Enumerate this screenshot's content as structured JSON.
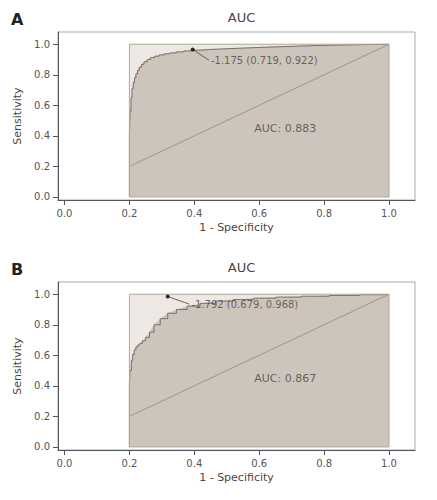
{
  "chart_data": [
    {
      "type": "line",
      "title": "AUC",
      "xlabel": "1 - Specificity",
      "ylabel": "Sensitivity",
      "xlim": [
        -0.02,
        1.08
      ],
      "ylim": [
        -0.02,
        1.08
      ],
      "xticks": [
        {
          "value": 0.0,
          "label": "0.0"
        },
        0.2,
        0.4,
        0.6,
        0.8,
        {
          "value": 1.0,
          "label": "1.0"
        }
      ],
      "yticks": [
        {
          "value": 0.0,
          "label": "0.0"
        },
        0.2,
        0.4,
        0.6,
        0.8,
        {
          "value": 1.0,
          "label": "1.0"
        }
      ],
      "grid": false,
      "series": [
        {
          "type": "area",
          "color": "#ede8e3",
          "x": [
            0.2,
            1.0
          ],
          "values": [
            1.0,
            1.0
          ]
        },
        {
          "type": "area",
          "color": "#cdc5bc",
          "x": [
            0.2,
            0.2,
            0.202,
            0.205,
            0.208,
            0.212,
            0.216,
            0.22,
            0.225,
            0.23,
            0.237,
            0.245,
            0.255,
            0.265,
            0.278,
            0.292,
            0.308,
            0.325,
            0.345,
            0.368,
            0.392,
            0.418,
            0.446,
            0.476,
            0.508,
            0.542,
            0.578,
            0.616,
            0.656,
            0.698,
            0.742,
            0.788,
            0.836,
            0.886,
            0.938,
            0.992,
            1.0
          ],
          "values": [
            0.0,
            0.4,
            0.56,
            0.65,
            0.71,
            0.75,
            0.78,
            0.805,
            0.828,
            0.848,
            0.868,
            0.885,
            0.9,
            0.912,
            0.922,
            0.93,
            0.937,
            0.943,
            0.95,
            0.956,
            0.961,
            0.965,
            0.968,
            0.971,
            0.974,
            0.977,
            0.98,
            0.983,
            0.986,
            0.989,
            0.992,
            0.994,
            0.996,
            0.998,
            0.999,
            1.0,
            1.0
          ]
        },
        {
          "type": "step",
          "color": "#7a7068",
          "x": [
            0.2,
            0.2,
            0.202,
            0.205,
            0.208,
            0.212,
            0.216,
            0.22,
            0.225,
            0.23,
            0.237,
            0.245,
            0.255,
            0.265,
            0.278,
            0.292,
            0.308,
            0.325,
            0.345,
            0.368,
            0.392,
            0.418,
            0.446,
            0.476,
            0.508,
            0.542,
            0.578,
            0.616,
            0.656,
            0.698,
            0.742,
            0.788,
            0.836,
            0.886,
            0.938,
            0.992,
            1.0
          ],
          "values": [
            0.0,
            0.4,
            0.56,
            0.65,
            0.71,
            0.75,
            0.78,
            0.805,
            0.828,
            0.848,
            0.868,
            0.885,
            0.9,
            0.912,
            0.922,
            0.93,
            0.937,
            0.943,
            0.95,
            0.956,
            0.961,
            0.965,
            0.968,
            0.971,
            0.974,
            0.977,
            0.98,
            0.983,
            0.986,
            0.989,
            0.992,
            0.994,
            0.996,
            0.998,
            0.999,
            1.0,
            1.0
          ]
        },
        {
          "type": "line",
          "color": "#a09585",
          "x": [
            0.2,
            1.0
          ],
          "values": [
            0.2,
            1.0
          ]
        },
        {
          "type": "line",
          "color": "#b0a898",
          "x": [
            0.2,
            0.2,
            1.0,
            1.0,
            0.2
          ],
          "values": [
            0.0,
            1.0,
            1.0,
            0.0,
            0.0
          ]
        }
      ],
      "annotations": [
        {
          "text": "A"
        },
        {
          "text": "AUC: 0.883",
          "x": 0.68,
          "y": 0.45
        },
        {
          "text": "-1.175 (0.719, 0.922)",
          "x": 0.445,
          "y": 0.895,
          "point_x": 0.395,
          "point_y": 0.966,
          "color": "#000000"
        }
      ]
    },
    {
      "type": "line",
      "title": "AUC",
      "xlabel": "1 - Specificity",
      "ylabel": "Sensitivity",
      "xlim": [
        -0.02,
        1.08
      ],
      "ylim": [
        -0.02,
        1.08
      ],
      "xticks": [
        {
          "value": 0.0,
          "label": "0.0"
        },
        0.2,
        0.4,
        0.6,
        0.8,
        {
          "value": 1.0,
          "label": "1.0"
        }
      ],
      "yticks": [
        {
          "value": 0.0,
          "label": "0.0"
        },
        0.2,
        0.4,
        0.6,
        0.8,
        {
          "value": 1.0,
          "label": "1.0"
        }
      ],
      "grid": false,
      "series": [
        {
          "type": "area",
          "color": "#ede8e3",
          "x": [
            0.2,
            1.0
          ],
          "values": [
            1.0,
            1.0
          ]
        },
        {
          "type": "area",
          "color": "#cdc5bc",
          "x": [
            0.2,
            0.2,
            0.202,
            0.206,
            0.21,
            0.215,
            0.22,
            0.226,
            0.232,
            0.24,
            0.25,
            0.262,
            0.276,
            0.295,
            0.318,
            0.345,
            0.378,
            0.418,
            0.465,
            0.52,
            0.582,
            0.652,
            0.73,
            0.816,
            0.91,
            1.0
          ],
          "values": [
            0.0,
            0.41,
            0.5,
            0.565,
            0.605,
            0.635,
            0.655,
            0.668,
            0.678,
            0.695,
            0.718,
            0.752,
            0.8,
            0.84,
            0.875,
            0.9,
            0.922,
            0.94,
            0.955,
            0.965,
            0.974,
            0.981,
            0.987,
            0.992,
            0.997,
            1.0
          ]
        },
        {
          "type": "step",
          "color": "#7a7068",
          "x": [
            0.2,
            0.2,
            0.202,
            0.206,
            0.21,
            0.215,
            0.22,
            0.226,
            0.232,
            0.24,
            0.25,
            0.262,
            0.276,
            0.295,
            0.318,
            0.345,
            0.378,
            0.418,
            0.465,
            0.52,
            0.582,
            0.652,
            0.73,
            0.816,
            0.91,
            1.0
          ],
          "values": [
            0.0,
            0.41,
            0.5,
            0.565,
            0.605,
            0.635,
            0.655,
            0.668,
            0.678,
            0.695,
            0.718,
            0.752,
            0.8,
            0.84,
            0.875,
            0.9,
            0.922,
            0.94,
            0.955,
            0.965,
            0.974,
            0.981,
            0.987,
            0.992,
            0.997,
            1.0
          ]
        },
        {
          "type": "line",
          "color": "#a09585",
          "x": [
            0.2,
            1.0
          ],
          "values": [
            0.2,
            1.0
          ]
        },
        {
          "type": "line",
          "color": "#b0a898",
          "x": [
            0.2,
            0.2,
            1.0,
            1.0,
            0.2
          ],
          "values": [
            0.0,
            1.0,
            1.0,
            0.0,
            0.0
          ]
        }
      ],
      "annotations": [
        {
          "text": "B"
        },
        {
          "text": "AUC: 0.867",
          "x": 0.68,
          "y": 0.45
        },
        {
          "text": "-1.792 (0.679, 0.968)",
          "x": 0.385,
          "y": 0.935,
          "point_x": 0.318,
          "point_y": 0.985,
          "color": "#000000"
        }
      ]
    }
  ]
}
